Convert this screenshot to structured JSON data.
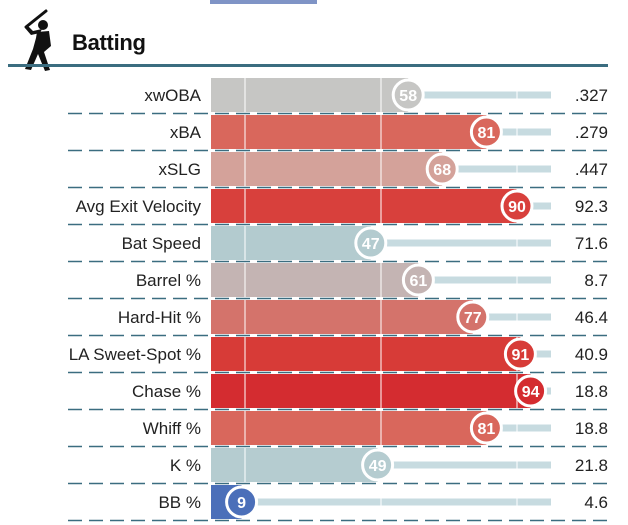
{
  "section": {
    "title": "Batting",
    "icon": "baseball-batter-icon"
  },
  "chart_data": {
    "type": "bar",
    "orientation": "horizontal",
    "title": "Batting",
    "xlim": [
      0,
      100
    ],
    "reference_lines": [
      10,
      50,
      90
    ],
    "categories": [
      "xwOBA",
      "xBA",
      "xSLG",
      "Avg Exit Velocity",
      "Bat Speed",
      "Barrel %",
      "Hard-Hit %",
      "LA Sweet-Spot %",
      "Chase %",
      "Whiff %",
      "K %",
      "BB %"
    ],
    "series": [
      {
        "values": [
          58,
          81,
          68,
          90,
          47,
          61,
          77,
          91,
          94,
          81,
          49,
          9
        ]
      }
    ],
    "stat_values": [
      ".327",
      ".279",
      ".447",
      "92.3",
      "71.6",
      "8.7",
      "46.4",
      "40.9",
      "18.8",
      "18.8",
      "21.8",
      "4.6"
    ],
    "colors": [
      "#c6c6c4",
      "#d9675c",
      "#d4a29a",
      "#d8403c",
      "#b3cbcf",
      "#c4b4b3",
      "#d4736b",
      "#d73b37",
      "#d42c30",
      "#d9675c",
      "#b5ccd0",
      "#4b6fb9"
    ],
    "track_color": "#c7dbe0",
    "divider_color": "#3b6d80"
  }
}
